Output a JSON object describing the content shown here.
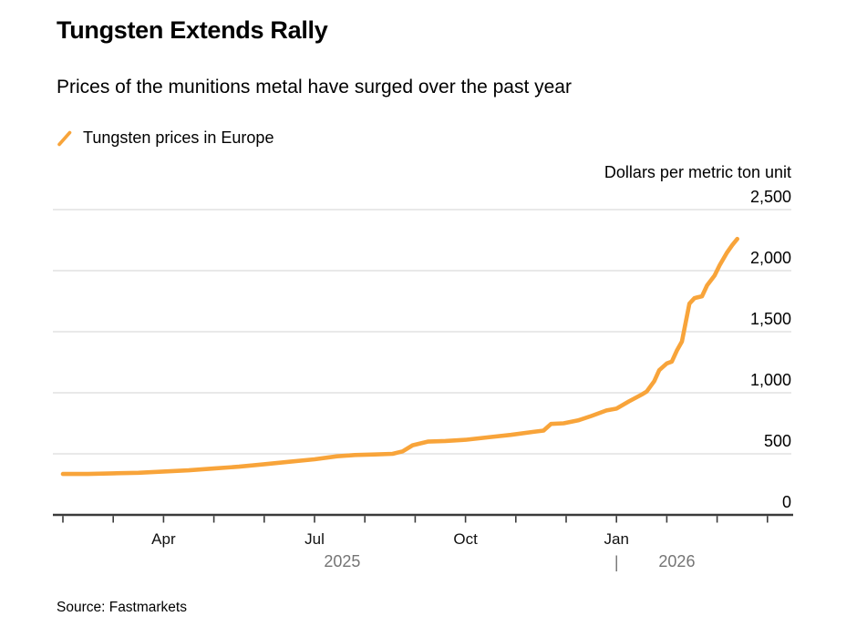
{
  "header": {
    "title": "Tungsten Extends Rally",
    "subtitle": "Prices of the munitions metal have surged over the past year"
  },
  "legend": {
    "items": [
      {
        "label": "Tungsten prices in Europe",
        "marker": "slash-icon",
        "color": "#F8A43A"
      }
    ]
  },
  "axis_unit": "Dollars per metric ton unit",
  "source": "Source: Fastmarkets",
  "colors": {
    "line": "#F8A43A",
    "grid": "#DCDCDC",
    "axis": "#3B3B3B",
    "year_text": "#757575",
    "background": "#FFFFFF"
  },
  "chart_data": {
    "type": "line",
    "title": "Tungsten Extends Rally",
    "series_name": "Tungsten prices in Europe",
    "ylabel": "Dollars per metric ton unit",
    "ylim": [
      0,
      2500
    ],
    "grid": "horizontal",
    "legend_position": "top-left",
    "y_ticks": [
      0,
      500,
      1000,
      1500,
      2000,
      2500
    ],
    "y_tick_labels": [
      "0",
      "500",
      "1,000",
      "1,500",
      "2,000",
      "2,500"
    ],
    "x_range": [
      "Feb 2025",
      "Mar 2026"
    ],
    "x_month_ticks": [
      {
        "label": "Apr",
        "t": 2
      },
      {
        "label": "Jul",
        "t": 5
      },
      {
        "label": "Oct",
        "t": 8
      },
      {
        "label": "Jan",
        "t": 11
      }
    ],
    "year_labels": [
      {
        "label": "2025",
        "t": 5.55
      },
      {
        "label": "2026",
        "t": 12.2
      }
    ],
    "year_divider_t": 11,
    "points_format": "[months since Feb 1 2025, dollars per metric ton unit]",
    "points": [
      [
        0,
        335
      ],
      [
        0.5,
        335
      ],
      [
        1,
        340
      ],
      [
        1.5,
        345
      ],
      [
        2,
        355
      ],
      [
        2.5,
        365
      ],
      [
        3,
        380
      ],
      [
        3.5,
        395
      ],
      [
        4,
        415
      ],
      [
        4.5,
        435
      ],
      [
        5,
        455
      ],
      [
        5.45,
        480
      ],
      [
        5.8,
        490
      ],
      [
        6.2,
        495
      ],
      [
        6.55,
        500
      ],
      [
        6.75,
        520
      ],
      [
        6.95,
        570
      ],
      [
        7.25,
        600
      ],
      [
        7.6,
        605
      ],
      [
        8,
        615
      ],
      [
        8.45,
        635
      ],
      [
        8.9,
        655
      ],
      [
        9.35,
        680
      ],
      [
        9.55,
        690
      ],
      [
        9.7,
        745
      ],
      [
        9.95,
        750
      ],
      [
        10.25,
        775
      ],
      [
        10.5,
        810
      ],
      [
        10.8,
        855
      ],
      [
        11,
        870
      ],
      [
        11.25,
        930
      ],
      [
        11.5,
        985
      ],
      [
        11.6,
        1010
      ],
      [
        11.75,
        1095
      ],
      [
        11.85,
        1185
      ],
      [
        12,
        1240
      ],
      [
        12.1,
        1255
      ],
      [
        12.2,
        1345
      ],
      [
        12.3,
        1420
      ],
      [
        12.45,
        1730
      ],
      [
        12.55,
        1775
      ],
      [
        12.7,
        1790
      ],
      [
        12.8,
        1880
      ],
      [
        12.95,
        1960
      ],
      [
        13.05,
        2045
      ],
      [
        13.2,
        2150
      ],
      [
        13.3,
        2210
      ],
      [
        13.4,
        2260
      ]
    ]
  }
}
